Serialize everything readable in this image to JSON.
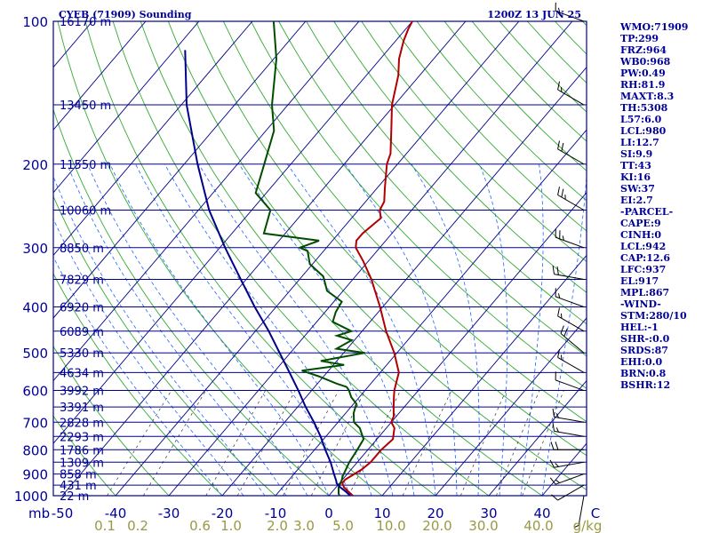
{
  "chart_data": {
    "type": "skew-t log-p sounding",
    "title": "CYEB (71909) Sounding",
    "valid_time": "1200Z 13 JUN 25",
    "pressure_axis_label": "mb",
    "temperature_axis_unit": "C",
    "mixing_ratio_unit": "g/kg",
    "pressure_range_hpa": [
      100,
      1000
    ],
    "temperature_range_c_at_bottom": [
      -50,
      50
    ],
    "pressure_ticks": [
      100,
      200,
      300,
      400,
      500,
      600,
      700,
      800,
      900,
      1000
    ],
    "temperature_ticks": [
      -50,
      -40,
      -30,
      -20,
      -10,
      0,
      10,
      20,
      30,
      40,
      50
    ],
    "mixing_ratio_ticks": [
      "0.1",
      "0.2",
      "0.6",
      "1.0",
      "2.0",
      "3.0",
      "5.0",
      "10.0",
      "20.0",
      "30.0",
      "40.0"
    ],
    "heights": [
      {
        "p": 100,
        "label": "16170 m"
      },
      {
        "p": 150,
        "label": "13450 m"
      },
      {
        "p": 200,
        "label": "11550 m"
      },
      {
        "p": 250,
        "label": "10060 m"
      },
      {
        "p": 300,
        "label": "8850 m"
      },
      {
        "p": 350,
        "label": "7829 m"
      },
      {
        "p": 400,
        "label": "6920 m"
      },
      {
        "p": 450,
        "label": "6089 m"
      },
      {
        "p": 500,
        "label": "5330 m"
      },
      {
        "p": 550,
        "label": "4634 m"
      },
      {
        "p": 600,
        "label": "3992 m"
      },
      {
        "p": 650,
        "label": "3391 m"
      },
      {
        "p": 700,
        "label": "2828 m"
      },
      {
        "p": 750,
        "label": "2293 m"
      },
      {
        "p": 800,
        "label": "1786 m"
      },
      {
        "p": 850,
        "label": "1309 m"
      },
      {
        "p": 900,
        "label": "858 m"
      },
      {
        "p": 950,
        "label": "431 m"
      },
      {
        "p": 1000,
        "label": "22 m"
      }
    ],
    "series": [
      {
        "name": "Temperature",
        "color": "#b00000",
        "points": [
          [
            1000,
            4.5
          ],
          [
            980,
            3.0
          ],
          [
            960,
            1.5
          ],
          [
            940,
            0.5
          ],
          [
            925,
            0.5
          ],
          [
            910,
            1.0
          ],
          [
            880,
            2.0
          ],
          [
            850,
            2.5
          ],
          [
            800,
            2.5
          ],
          [
            760,
            3.0
          ],
          [
            720,
            1.5
          ],
          [
            700,
            0.0
          ],
          [
            680,
            -0.5
          ],
          [
            650,
            -2.0
          ],
          [
            620,
            -3.5
          ],
          [
            600,
            -4.5
          ],
          [
            575,
            -5.5
          ],
          [
            550,
            -6.5
          ],
          [
            500,
            -10.5
          ],
          [
            450,
            -15.5
          ],
          [
            400,
            -20.5
          ],
          [
            350,
            -26.5
          ],
          [
            320,
            -31.0
          ],
          [
            300,
            -34.5
          ],
          [
            290,
            -35.5
          ],
          [
            280,
            -35.5
          ],
          [
            260,
            -34.5
          ],
          [
            250,
            -36.0
          ],
          [
            240,
            -36.5
          ],
          [
            225,
            -38.5
          ],
          [
            200,
            -42.0
          ],
          [
            190,
            -43.0
          ],
          [
            170,
            -46.5
          ],
          [
            150,
            -50.5
          ],
          [
            130,
            -54.0
          ],
          [
            120,
            -56.5
          ],
          [
            110,
            -58.5
          ],
          [
            104,
            -59.5
          ],
          [
            100,
            -60.0
          ]
        ]
      },
      {
        "name": "Dewpoint",
        "color": "#004d00",
        "points": [
          [
            1000,
            2.0
          ],
          [
            990,
            1.5
          ],
          [
            960,
            0.5
          ],
          [
            930,
            0.0
          ],
          [
            910,
            -0.5
          ],
          [
            880,
            -1.0
          ],
          [
            850,
            -1.5
          ],
          [
            800,
            -2.0
          ],
          [
            760,
            -2.5
          ],
          [
            720,
            -5.0
          ],
          [
            700,
            -7.0
          ],
          [
            670,
            -8.5
          ],
          [
            640,
            -9.5
          ],
          [
            620,
            -11.5
          ],
          [
            600,
            -13.0
          ],
          [
            590,
            -14.0
          ],
          [
            580,
            -16.5
          ],
          [
            560,
            -21.0
          ],
          [
            545,
            -25.0
          ],
          [
            530,
            -18.0
          ],
          [
            520,
            -23.0
          ],
          [
            500,
            -16.0
          ],
          [
            490,
            -22.0
          ],
          [
            470,
            -20.5
          ],
          [
            460,
            -24.0
          ],
          [
            450,
            -22.0
          ],
          [
            430,
            -27.0
          ],
          [
            410,
            -28.0
          ],
          [
            390,
            -28.5
          ],
          [
            370,
            -33.0
          ],
          [
            345,
            -36.0
          ],
          [
            325,
            -40.5
          ],
          [
            305,
            -43.0
          ],
          [
            300,
            -45.0
          ],
          [
            290,
            -42.5
          ],
          [
            280,
            -54.0
          ],
          [
            250,
            -56.5
          ],
          [
            230,
            -62.0
          ],
          [
            200,
            -65.0
          ],
          [
            170,
            -68.5
          ],
          [
            150,
            -73.0
          ],
          [
            120,
            -79.5
          ],
          [
            100,
            -86.0
          ]
        ]
      },
      {
        "name": "Parcel",
        "color": "#00008b",
        "points": [
          [
            1000,
            4.0
          ],
          [
            980,
            2.5
          ],
          [
            960,
            0.8
          ],
          [
            942,
            -0.5
          ],
          [
            930,
            -1.0
          ],
          [
            900,
            -2.5
          ],
          [
            850,
            -5.0
          ],
          [
            800,
            -8.0
          ],
          [
            750,
            -11.0
          ],
          [
            700,
            -14.5
          ],
          [
            650,
            -18.5
          ],
          [
            600,
            -22.5
          ],
          [
            550,
            -27.0
          ],
          [
            500,
            -32.0
          ],
          [
            450,
            -37.5
          ],
          [
            400,
            -44.0
          ],
          [
            350,
            -51.0
          ],
          [
            300,
            -59.0
          ],
          [
            250,
            -68.0
          ],
          [
            200,
            -77.5
          ],
          [
            150,
            -89.0
          ],
          [
            115,
            -98.0
          ]
        ]
      }
    ],
    "wind_barbs": [
      {
        "p": 1000,
        "dir": 190,
        "kt": 5
      },
      {
        "p": 950,
        "dir": 240,
        "kt": 10
      },
      {
        "p": 900,
        "dir": 250,
        "kt": 15
      },
      {
        "p": 850,
        "dir": 260,
        "kt": 15
      },
      {
        "p": 800,
        "dir": 270,
        "kt": 20
      },
      {
        "p": 750,
        "dir": 280,
        "kt": 15
      },
      {
        "p": 700,
        "dir": 280,
        "kt": 15
      },
      {
        "p": 600,
        "dir": 290,
        "kt": 10
      },
      {
        "p": 550,
        "dir": 300,
        "kt": 15
      },
      {
        "p": 500,
        "dir": 310,
        "kt": 20
      },
      {
        "p": 450,
        "dir": 300,
        "kt": 15
      },
      {
        "p": 400,
        "dir": 290,
        "kt": 15
      },
      {
        "p": 350,
        "dir": 280,
        "kt": 20
      },
      {
        "p": 300,
        "dir": 290,
        "kt": 25
      },
      {
        "p": 250,
        "dir": 300,
        "kt": 25
      },
      {
        "p": 200,
        "dir": 300,
        "kt": 20
      },
      {
        "p": 150,
        "dir": 300,
        "kt": 15
      },
      {
        "p": 100,
        "dir": 290,
        "kt": 15
      }
    ]
  },
  "indices": [
    "WMO:71909",
    "TP:299",
    "FRZ:964",
    "WB0:968",
    "PW:0.49",
    "RH:81.9",
    "MAXT:8.3",
    "TH:5308",
    "L57:6.0",
    "LCL:980",
    "LI:12.7",
    "SI:9.9",
    "TT:43",
    "KI:16",
    "SW:37",
    "EI:2.7",
    "-PARCEL-",
    "CAPE:9",
    "CINH:0",
    "LCL:942",
    "CAP:12.6",
    "LFC:937",
    "EL:917",
    "MPL:867",
    "-WIND-",
    "STM:280/10",
    "HEL:-1",
    "SHR-:0.0",
    "SRDS:87",
    "EHI:0.0",
    "BRN:0.8",
    "BSHR:12"
  ],
  "colors": {
    "isobar": "#00008b",
    "isotherm": "#00008b",
    "dry_adiabat": "#33aa33",
    "moist_adiabat": "#2266ff",
    "mixing_ratio": "#333333",
    "axis_text": "#000099",
    "mixing_ratio_text": "#999944"
  }
}
